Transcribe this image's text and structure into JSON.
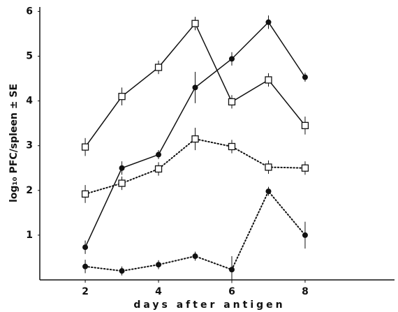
{
  "chart_data": {
    "type": "line",
    "x_label": "days after antigen",
    "y_label": "log₁₀ PFC/spleen ± SE",
    "x": [
      2,
      3,
      4,
      5,
      6,
      7,
      8
    ],
    "series": [
      {
        "color": "#111111",
        "marker": "square",
        "line_style": "solid",
        "values": [
          2.97,
          4.1,
          4.75,
          5.73,
          3.98,
          4.47,
          3.45
        ],
        "errors": [
          0.2,
          0.2,
          0.15,
          0.15,
          0.15,
          0.15,
          0.2
        ]
      },
      {
        "color": "#111111",
        "marker": "square",
        "line_style": "dotted",
        "values": [
          1.92,
          2.16,
          2.48,
          3.15,
          2.98,
          2.52,
          2.5
        ],
        "errors": [
          0.2,
          0.15,
          0.15,
          0.25,
          0.15,
          0.15,
          0.15
        ]
      },
      {
        "color": "#111111",
        "marker": "circle",
        "line_style": "solid",
        "values": [
          0.73,
          2.5,
          2.8,
          4.3,
          4.94,
          5.76,
          4.53
        ],
        "errors": [
          0.15,
          0.15,
          0.1,
          0.35,
          0.15,
          0.15,
          0.1
        ]
      },
      {
        "color": "#111111",
        "marker": "circle",
        "line_style": "dotted",
        "values": [
          0.3,
          0.2,
          0.34,
          0.53,
          0.23,
          1.98,
          1.0
        ],
        "errors": [
          0.15,
          0.1,
          0.1,
          0.1,
          0.3,
          0.1,
          0.3
        ]
      }
    ],
    "xlim": [
      0.76,
      10.44
    ],
    "ylim": [
      0,
      6.1
    ],
    "xticks": [
      2,
      4,
      6,
      8
    ],
    "yticks": [
      1,
      2,
      3,
      4,
      5,
      6
    ],
    "grid": false
  }
}
